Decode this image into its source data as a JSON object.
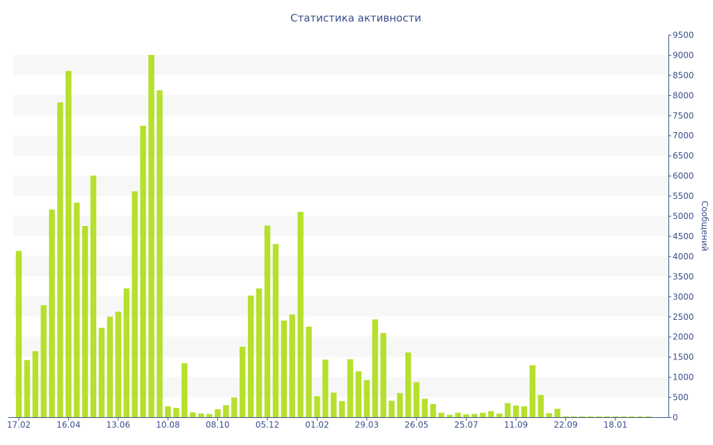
{
  "chart_data": {
    "type": "bar",
    "title": "Статистика активности",
    "ylabel": "Сообщений",
    "y_axis_position": "right",
    "ylim": [
      0,
      9500
    ],
    "y_ticks": [
      0,
      500,
      1000,
      1500,
      2000,
      2500,
      3000,
      3500,
      4000,
      4500,
      5000,
      5500,
      6000,
      6500,
      7000,
      7500,
      8000,
      8500,
      9000,
      9500
    ],
    "grid": "alternating horizontal bands",
    "bar_color": "#b5e02c",
    "x_tick_labels": [
      {
        "index": 0,
        "label": "17.02"
      },
      {
        "index": 6,
        "label": "16.04"
      },
      {
        "index": 12,
        "label": "13.06"
      },
      {
        "index": 18,
        "label": "10.08"
      },
      {
        "index": 24,
        "label": "08.10"
      },
      {
        "index": 30,
        "label": "05.12"
      },
      {
        "index": 36,
        "label": "01.02"
      },
      {
        "index": 42,
        "label": "29.03"
      },
      {
        "index": 48,
        "label": "26.05"
      },
      {
        "index": 54,
        "label": "25.07"
      },
      {
        "index": 60,
        "label": "11.09"
      },
      {
        "index": 66,
        "label": "22.09"
      },
      {
        "index": 72,
        "label": "18.01"
      }
    ],
    "values": [
      4130,
      1420,
      1640,
      2780,
      5160,
      7820,
      8600,
      5330,
      4750,
      6000,
      2220,
      2500,
      2620,
      3200,
      5610,
      7240,
      9000,
      8120,
      270,
      230,
      1340,
      120,
      90,
      80,
      200,
      300,
      490,
      1750,
      3020,
      3200,
      4760,
      4300,
      2400,
      2550,
      5100,
      2250,
      520,
      1430,
      610,
      400,
      1440,
      1140,
      920,
      2430,
      2090,
      410,
      600,
      1610,
      870,
      460,
      330,
      110,
      60,
      110,
      70,
      80,
      110,
      150,
      90,
      350,
      290,
      270,
      1290,
      550,
      100,
      210,
      20,
      20,
      20,
      20,
      20,
      20,
      20,
      20,
      20,
      20,
      20
    ]
  }
}
